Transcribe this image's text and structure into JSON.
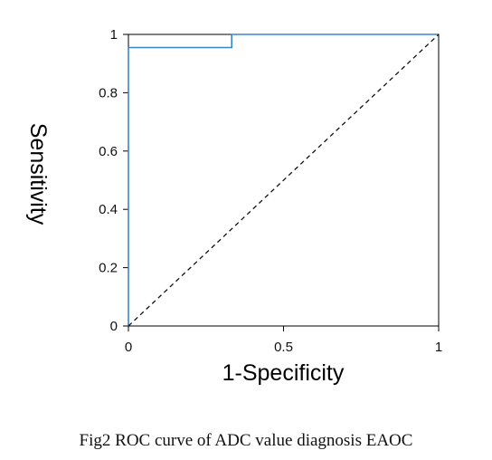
{
  "chart_data": {
    "type": "line",
    "title": "",
    "xlabel": "1-Specificity",
    "ylabel": "Sensitivity",
    "xlim": [
      0,
      1
    ],
    "ylim": [
      0,
      1
    ],
    "x_ticks": [
      "0",
      "0.5",
      "1"
    ],
    "y_ticks": [
      "0",
      "0.2",
      "0.4",
      "0.6",
      "0.8",
      "1"
    ],
    "grid": false,
    "legend": "none",
    "series": [
      {
        "color": "#3a86c8",
        "style": "step",
        "points": [
          {
            "x": 0,
            "y": 0
          },
          {
            "x": 0,
            "y": 0.955
          },
          {
            "x": 0.333,
            "y": 0.955
          },
          {
            "x": 0.333,
            "y": 1
          },
          {
            "x": 1,
            "y": 1
          }
        ]
      },
      {
        "color": "#111111",
        "style": "dashed",
        "points": [
          {
            "x": 0,
            "y": 0
          },
          {
            "x": 1,
            "y": 1
          }
        ]
      }
    ]
  },
  "caption": "Fig2 ROC curve of ADC value diagnosis EAOC"
}
